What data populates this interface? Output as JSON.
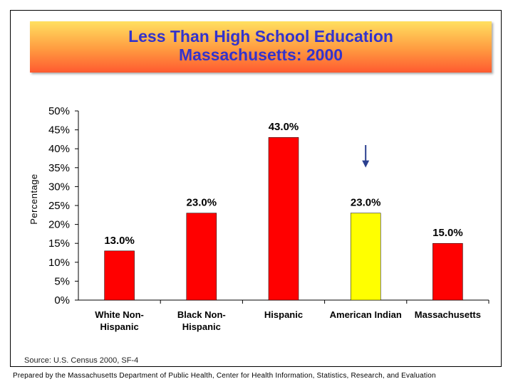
{
  "chart_data": {
    "type": "bar",
    "title": "Less Than High School Education",
    "subtitle": "Massachusetts: 2000",
    "ylabel": "Percentage",
    "xlabel": "",
    "ylim": [
      0,
      50
    ],
    "ytick_labels": [
      "0%",
      "5%",
      "10%",
      "15%",
      "20%",
      "25%",
      "30%",
      "35%",
      "40%",
      "45%",
      "50%"
    ],
    "categories": [
      [
        "White Non-",
        "Hispanic"
      ],
      [
        "Black Non-",
        "Hispanic"
      ],
      [
        "Hispanic"
      ],
      [
        "American Indian"
      ],
      [
        "Massachusetts"
      ]
    ],
    "values": [
      13,
      23,
      43,
      23,
      15
    ],
    "data_labels": [
      "13.0%",
      "23.0%",
      "43.0%",
      "23.0%",
      "15.0%"
    ],
    "bar_colors": [
      "#ff0000",
      "#ff0000",
      "#ff0000",
      "#ffff00",
      "#ff0000"
    ],
    "highlight_index": 3,
    "arrow_color": "#2a3f8f",
    "grid": false,
    "legend": "none"
  },
  "source": "Source: U.S. Census 2000, SF-4",
  "footer": "Prepared by the Massachusetts Department of Public Health, Center for Health Information, Statistics, Research, and Evaluation"
}
